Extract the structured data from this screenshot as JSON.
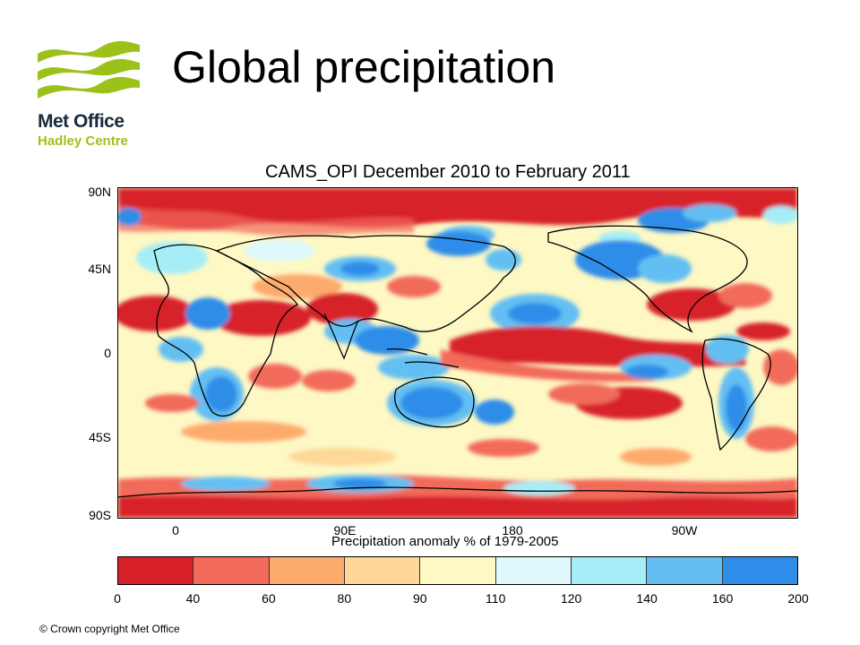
{
  "logo": {
    "name": "Met Office",
    "subtitle": "Hadley Centre",
    "color": "#9cc21a"
  },
  "slide_title": "Global precipitation",
  "map": {
    "title": "CAMS_OPI December 2010 to February 2011",
    "y_ticks": [
      "90N",
      "45N",
      "0",
      "45S",
      "90S"
    ],
    "x_ticks": [
      "0",
      "90E",
      "180",
      "90W"
    ],
    "x_axis_title": "Precipitation anomaly % of 1979-2005"
  },
  "colorbar": {
    "labels": [
      "0",
      "40",
      "60",
      "80",
      "90",
      "110",
      "120",
      "140",
      "160",
      "200"
    ],
    "colors": [
      "#d7202a",
      "#f26a5a",
      "#fdab6d",
      "#fdd898",
      "#fdf8c4",
      "#dff8fb",
      "#a6eef7",
      "#63bff2",
      "#2e8de8"
    ]
  },
  "copyright": "© Crown copyright   Met Office"
}
